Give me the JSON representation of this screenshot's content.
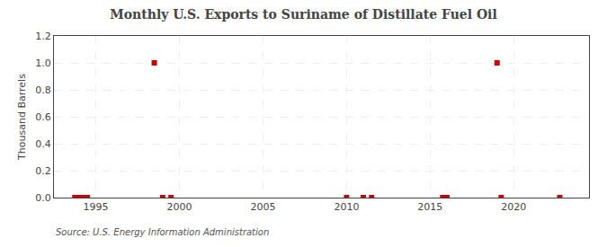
{
  "chart_data": {
    "type": "scatter",
    "title": "Monthly U.S. Exports to Suriname of Distillate Fuel Oil",
    "ylabel": "Thousand Barrels",
    "annotations": [
      "Source: U.S. Energy Information Administration"
    ],
    "x": [
      1993.75,
      1994.0,
      1994.25,
      1994.5,
      1998.5,
      1999.0,
      1999.5,
      2010.0,
      2011.0,
      2011.5,
      2015.75,
      2016.0,
      2019.0,
      2019.25,
      2022.75
    ],
    "values": [
      0.0,
      0.0,
      0.0,
      0.0,
      1.0,
      0.0,
      0.0,
      0.0,
      0.0,
      0.0,
      0.0,
      0.0,
      1.0,
      0.0,
      0.0
    ],
    "color": "#cc0000",
    "marker": "square",
    "xlim": [
      1992.5,
      2024.5
    ],
    "ylim": [
      0.0,
      1.2
    ],
    "xticks": [
      1995,
      2000,
      2005,
      2010,
      2015,
      2020
    ],
    "yticks": [
      {
        "value": 0.0,
        "label": "0.0"
      },
      0.2,
      0.4,
      0.6,
      0.8,
      {
        "value": 1.0,
        "label": "1.0"
      },
      1.2
    ],
    "grid": true
  }
}
